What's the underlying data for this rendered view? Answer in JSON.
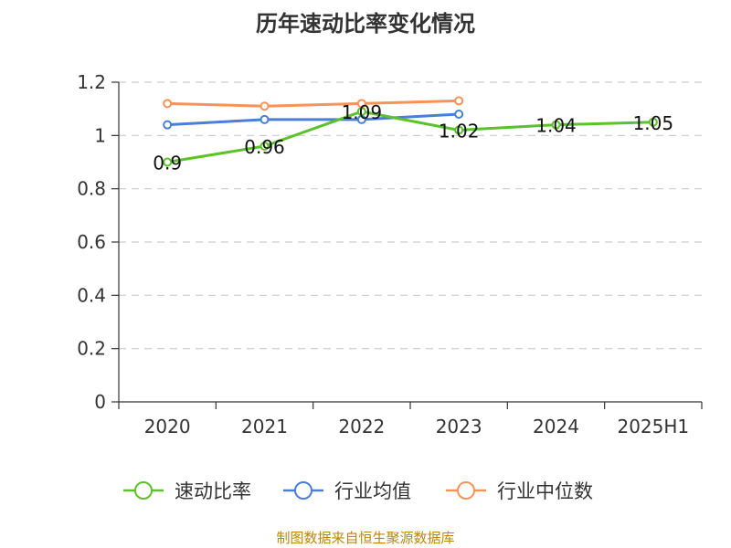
{
  "chart_data": {
    "type": "line",
    "title": "历年速动比率变化情况",
    "categories": [
      "2020",
      "2021",
      "2022",
      "2023",
      "2024",
      "2025H1"
    ],
    "ylim": [
      0,
      1.2
    ],
    "y_ticks": [
      "0",
      "0.2",
      "0.4",
      "0.6",
      "0.8",
      "1",
      "1.2"
    ],
    "grid": true,
    "legend_position": "bottom",
    "series": [
      {
        "name": "速动比率",
        "color": "#5cc12b",
        "values": [
          0.9,
          0.96,
          1.09,
          1.02,
          1.04,
          1.05
        ],
        "labels": [
          "0.9",
          "0.96",
          "1.09",
          "1.02",
          "1.04",
          "1.05"
        ]
      },
      {
        "name": "行业均值",
        "color": "#4a7ed8",
        "values": [
          1.04,
          1.06,
          1.06,
          1.08,
          null,
          null
        ]
      },
      {
        "name": "行业中位数",
        "color": "#f79358",
        "values": [
          1.12,
          1.11,
          1.12,
          1.13,
          null,
          null
        ]
      }
    ]
  },
  "source": "制图数据来自恒生聚源数据库"
}
